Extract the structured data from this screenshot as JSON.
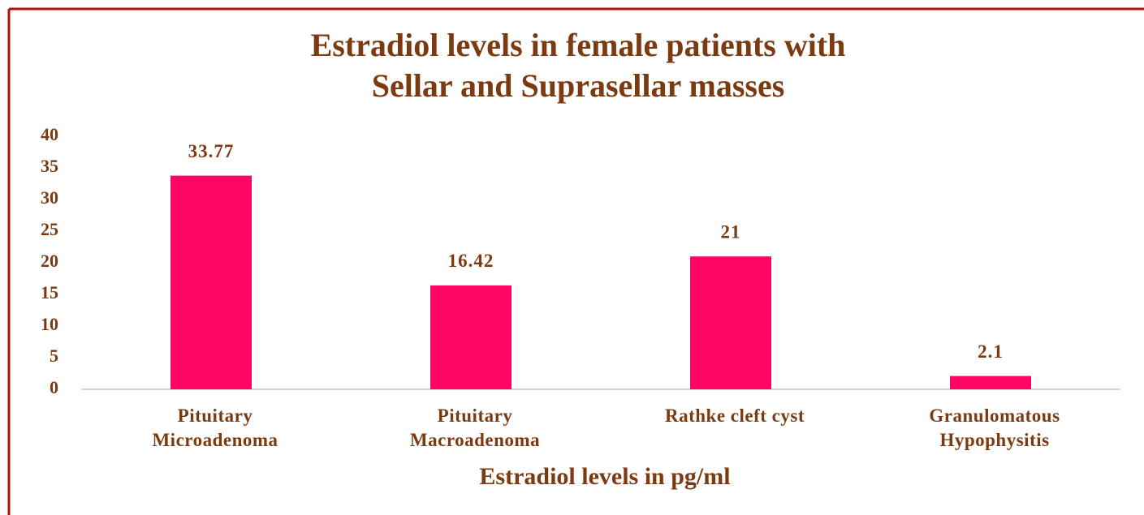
{
  "chart_data": {
    "type": "bar",
    "title": "Estradiol levels in female patients with\nSellar and Suprasellar masses",
    "x_label": "Estradiol levels in pg/ml",
    "categories": [
      "Pituitary\nMicroadenoma",
      "Pituitary\nMacroadenoma",
      "Rathke cleft cyst",
      "Granulomatous\nHypophysitis"
    ],
    "values": [
      33.77,
      16.42,
      21,
      2.1
    ],
    "color": "#fc0563",
    "ylim": [
      0,
      40
    ],
    "yticks": [
      0,
      5,
      10,
      15,
      20,
      25,
      30,
      35,
      40
    ],
    "grid": false
  }
}
